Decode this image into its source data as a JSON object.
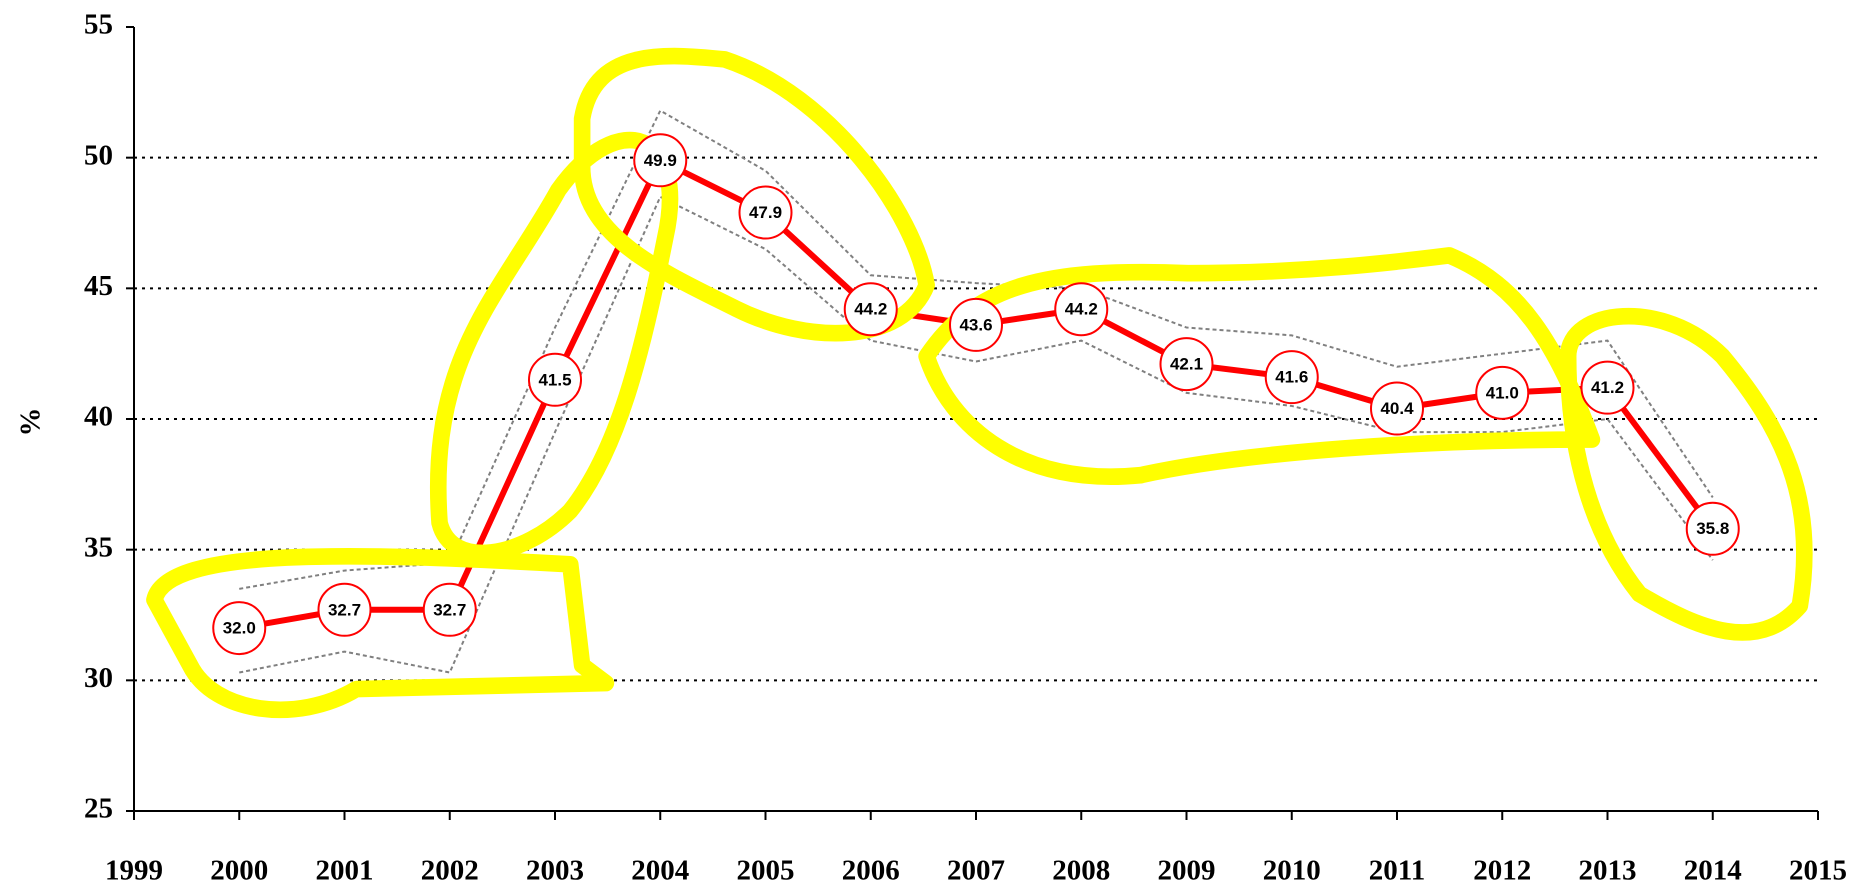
{
  "chart_data": {
    "type": "line",
    "y_label": "%",
    "x": [
      2000,
      2001,
      2002,
      2003,
      2004,
      2005,
      2006,
      2007,
      2008,
      2009,
      2010,
      2011,
      2012,
      2013,
      2014
    ],
    "series": [
      {
        "color": "#ff0000",
        "style": "solid",
        "markers": true,
        "values": [
          32.0,
          32.7,
          32.7,
          41.5,
          49.9,
          47.9,
          44.2,
          43.6,
          44.2,
          42.1,
          41.6,
          40.4,
          41.0,
          41.2,
          35.8
        ],
        "value_labels": [
          "32.0",
          "32.7",
          "32.7",
          "41.5",
          "49.9",
          "47.9",
          "44.2",
          "43.6",
          "44.2",
          "42.1",
          "41.6",
          "40.4",
          "41.0",
          "41.2",
          "35.8"
        ]
      },
      {
        "color": "#808080",
        "style": "dotted",
        "markers": false,
        "values": [
          33.5,
          34.2,
          34.5,
          43.5,
          51.8,
          49.5,
          45.5,
          45.2,
          45.0,
          43.5,
          43.2,
          42.0,
          42.5,
          43.0,
          37.0
        ]
      },
      {
        "color": "#808080",
        "style": "dotted",
        "markers": false,
        "values": [
          30.3,
          31.1,
          30.3,
          39.5,
          48.5,
          46.5,
          43.0,
          42.2,
          43.0,
          41.0,
          40.5,
          39.5,
          39.5,
          40.0,
          34.6
        ]
      }
    ],
    "xlim": [
      1999,
      2015
    ],
    "xticks": [
      1999,
      2000,
      2001,
      2002,
      2003,
      2004,
      2005,
      2006,
      2007,
      2008,
      2009,
      2010,
      2011,
      2012,
      2013,
      2014,
      2015
    ],
    "ylim": [
      25,
      55
    ],
    "yticks": [
      25,
      30,
      35,
      40,
      45,
      50,
      55
    ],
    "grid": true
  }
}
